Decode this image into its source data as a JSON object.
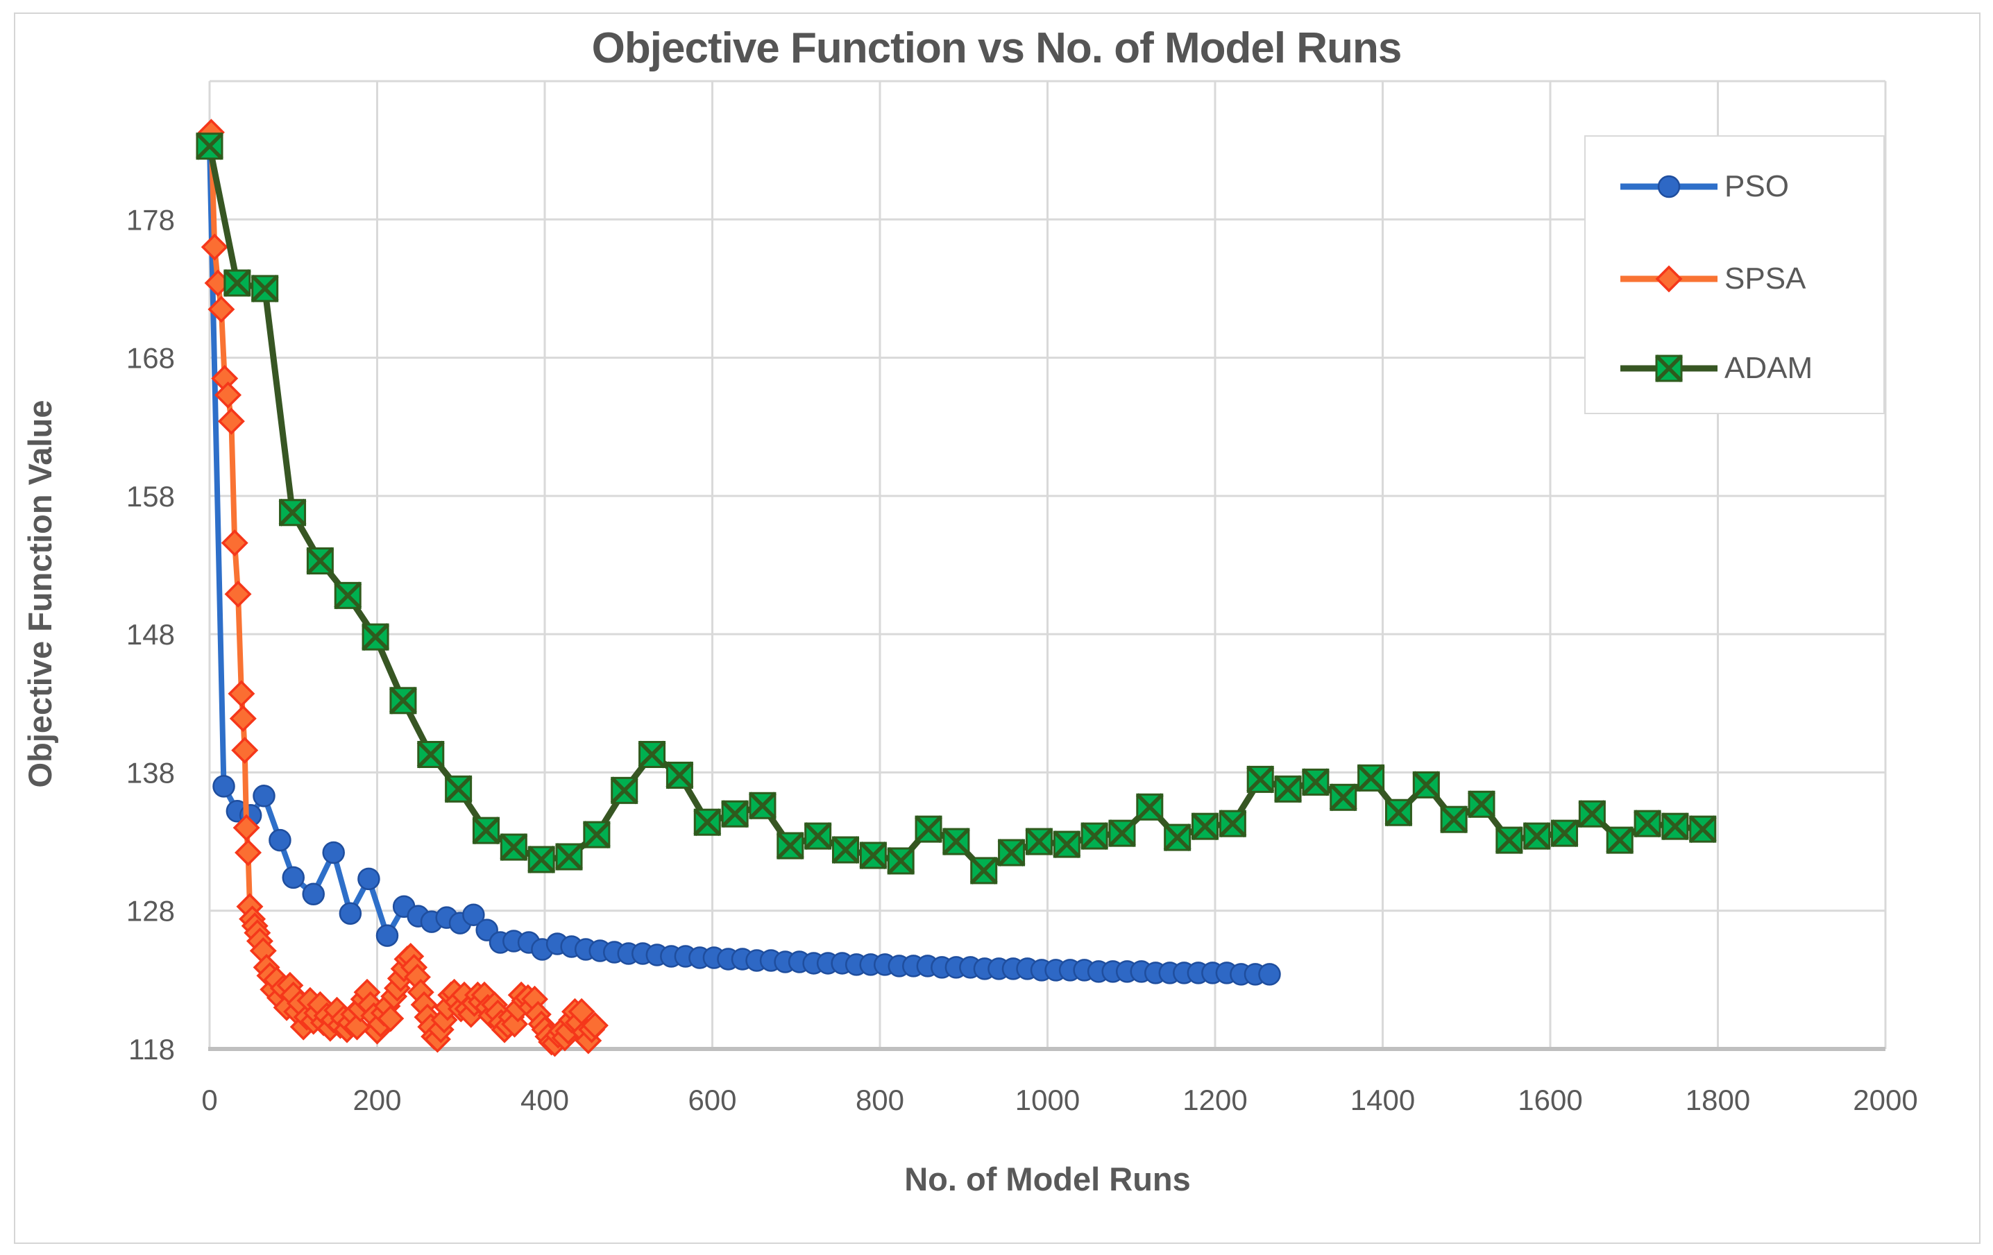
{
  "figure": {
    "title": "Objective Function vs No. of Model Runs",
    "x_axis_title": "No. of Model Runs",
    "y_axis_title": "Objective Function Value"
  },
  "legend": {
    "position": "top-right",
    "items": [
      {
        "label": "PSO",
        "marker": "circle"
      },
      {
        "label": "SPSA",
        "marker": "diamond"
      },
      {
        "label": "ADAM",
        "marker": "square-x"
      }
    ]
  },
  "colors": {
    "title_text": "#555555",
    "axis_text": "#595959",
    "gridline": "#d9d9d9",
    "axis_line": "#bfbfbf",
    "pso_line": "#2e6fc9",
    "pso_marker_fill": "#2e68c5",
    "pso_marker_stroke": "#1f4e9e",
    "spsa_line": "#f97333",
    "spsa_marker_fill": "#fb6e32",
    "spsa_marker_stroke": "#f5371a",
    "adam_line": "#375623",
    "adam_marker_fill": "#00b050",
    "adam_marker_stroke": "#2f5b1d"
  },
  "chart_data": {
    "type": "line",
    "title": "Objective Function vs No. of Model Runs",
    "xlabel": "No. of Model Runs",
    "ylabel": "Objective Function Value",
    "xlim": [
      0,
      2000
    ],
    "ylim": [
      118,
      188
    ],
    "x_ticks": [
      0,
      200,
      400,
      600,
      800,
      1000,
      1200,
      1400,
      1600,
      1800,
      2000
    ],
    "y_ticks": [
      118,
      128,
      138,
      148,
      158,
      168,
      178
    ],
    "grid": true,
    "legend_position": "top-right",
    "series": [
      {
        "name": "PSO",
        "marker": "circle",
        "line_color": "#2e6fc9",
        "marker_fill": "#2e68c5",
        "marker_stroke": "#1f4e9e",
        "points": [
          [
            0,
            183.3
          ],
          [
            17,
            137.0
          ],
          [
            33,
            135.2
          ],
          [
            49,
            134.9
          ],
          [
            65,
            136.3
          ],
          [
            84,
            133.1
          ],
          [
            100,
            130.4
          ],
          [
            124,
            129.2
          ],
          [
            148,
            132.2
          ],
          [
            168,
            127.8
          ],
          [
            190,
            130.3
          ],
          [
            212,
            126.2
          ],
          [
            232,
            128.3
          ],
          [
            249,
            127.6
          ],
          [
            265,
            127.2
          ],
          [
            283,
            127.5
          ],
          [
            299,
            127.1
          ],
          [
            315,
            127.7
          ],
          [
            331,
            126.6
          ],
          [
            347,
            125.7
          ],
          [
            363,
            125.8
          ],
          [
            381,
            125.7
          ],
          [
            397,
            125.2
          ],
          [
            415,
            125.6
          ],
          [
            432,
            125.4
          ],
          [
            449,
            125.2
          ],
          [
            466,
            125.1
          ],
          [
            483,
            125.0
          ],
          [
            500,
            124.9
          ],
          [
            517,
            124.9
          ],
          [
            534,
            124.8
          ],
          [
            551,
            124.7
          ],
          [
            568,
            124.7
          ],
          [
            585,
            124.6
          ],
          [
            602,
            124.6
          ],
          [
            619,
            124.5
          ],
          [
            636,
            124.5
          ],
          [
            653,
            124.4
          ],
          [
            670,
            124.4
          ],
          [
            687,
            124.3
          ],
          [
            704,
            124.3
          ],
          [
            721,
            124.2
          ],
          [
            738,
            124.2
          ],
          [
            755,
            124.2
          ],
          [
            772,
            124.1
          ],
          [
            789,
            124.1
          ],
          [
            806,
            124.1
          ],
          [
            823,
            124.0
          ],
          [
            840,
            124.0
          ],
          [
            857,
            124.0
          ],
          [
            874,
            123.9
          ],
          [
            891,
            123.9
          ],
          [
            908,
            123.9
          ],
          [
            925,
            123.8
          ],
          [
            942,
            123.8
          ],
          [
            959,
            123.8
          ],
          [
            976,
            123.8
          ],
          [
            993,
            123.7
          ],
          [
            1010,
            123.7
          ],
          [
            1027,
            123.7
          ],
          [
            1044,
            123.7
          ],
          [
            1061,
            123.6
          ],
          [
            1078,
            123.6
          ],
          [
            1095,
            123.6
          ],
          [
            1112,
            123.6
          ],
          [
            1129,
            123.5
          ],
          [
            1146,
            123.5
          ],
          [
            1163,
            123.5
          ],
          [
            1180,
            123.5
          ],
          [
            1197,
            123.5
          ],
          [
            1214,
            123.5
          ],
          [
            1231,
            123.4
          ],
          [
            1248,
            123.4
          ],
          [
            1265,
            123.4
          ]
        ]
      },
      {
        "name": "SPSA",
        "marker": "diamond",
        "line_color": "#f97333",
        "marker_fill": "#fb6e32",
        "marker_stroke": "#f5371a",
        "points": [
          [
            2,
            184.3
          ],
          [
            6,
            176.0
          ],
          [
            10,
            173.4
          ],
          [
            14,
            171.5
          ],
          [
            18,
            166.5
          ],
          [
            22,
            165.3
          ],
          [
            26,
            163.4
          ],
          [
            30,
            154.6
          ],
          [
            34,
            150.9
          ],
          [
            38,
            143.7
          ],
          [
            40,
            141.9
          ],
          [
            42,
            139.6
          ],
          [
            44,
            134.0
          ],
          [
            46,
            132.2
          ],
          [
            48,
            128.3
          ],
          [
            51,
            127.4
          ],
          [
            54,
            126.9
          ],
          [
            57,
            126.4
          ],
          [
            60,
            125.8
          ],
          [
            64,
            125.1
          ],
          [
            68,
            123.9
          ],
          [
            72,
            123.3
          ],
          [
            76,
            122.3
          ],
          [
            80,
            123.0
          ],
          [
            84,
            121.7
          ],
          [
            88,
            122.4
          ],
          [
            92,
            121.0
          ],
          [
            96,
            122.6
          ],
          [
            100,
            121.9
          ],
          [
            104,
            120.7
          ],
          [
            108,
            121.3
          ],
          [
            112,
            119.6
          ],
          [
            116,
            120.3
          ],
          [
            120,
            121.5
          ],
          [
            124,
            120.0
          ],
          [
            128,
            120.6
          ],
          [
            132,
            121.2
          ],
          [
            136,
            119.9
          ],
          [
            140,
            120.4
          ],
          [
            144,
            119.5
          ],
          [
            148,
            120.1
          ],
          [
            152,
            120.8
          ],
          [
            156,
            119.7
          ],
          [
            160,
            120.2
          ],
          [
            164,
            119.4
          ],
          [
            168,
            119.9
          ],
          [
            172,
            120.5
          ],
          [
            176,
            119.6
          ],
          [
            180,
            120.9
          ],
          [
            184,
            121.6
          ],
          [
            188,
            122.1
          ],
          [
            192,
            121.2
          ],
          [
            196,
            120.4
          ],
          [
            200,
            119.3
          ],
          [
            204,
            119.8
          ],
          [
            208,
            120.6
          ],
          [
            212,
            121.1
          ],
          [
            216,
            120.2
          ],
          [
            220,
            121.8
          ],
          [
            224,
            122.4
          ],
          [
            228,
            123.1
          ],
          [
            232,
            123.8
          ],
          [
            236,
            124.5
          ],
          [
            240,
            124.7
          ],
          [
            244,
            123.9
          ],
          [
            248,
            123.2
          ],
          [
            252,
            122.1
          ],
          [
            256,
            121.2
          ],
          [
            260,
            120.3
          ],
          [
            264,
            119.6
          ],
          [
            268,
            118.9
          ],
          [
            272,
            118.7
          ],
          [
            276,
            119.4
          ],
          [
            280,
            120.1
          ],
          [
            284,
            121.0
          ],
          [
            288,
            121.9
          ],
          [
            292,
            122.1
          ],
          [
            296,
            121.4
          ],
          [
            300,
            120.9
          ],
          [
            304,
            121.9
          ],
          [
            308,
            120.9
          ],
          [
            312,
            120.5
          ],
          [
            316,
            121.3
          ],
          [
            320,
            121.9
          ],
          [
            324,
            121.4
          ],
          [
            328,
            121.9
          ],
          [
            332,
            121.0
          ],
          [
            336,
            120.4
          ],
          [
            340,
            121.2
          ],
          [
            344,
            120.6
          ],
          [
            348,
            119.9
          ],
          [
            352,
            119.4
          ],
          [
            356,
            119.7
          ],
          [
            360,
            120.3
          ],
          [
            364,
            119.8
          ],
          [
            368,
            120.9
          ],
          [
            372,
            121.9
          ],
          [
            376,
            121.5
          ],
          [
            380,
            121.7
          ],
          [
            384,
            121.0
          ],
          [
            388,
            121.6
          ],
          [
            392,
            120.5
          ],
          [
            396,
            119.8
          ],
          [
            400,
            119.4
          ],
          [
            404,
            118.9
          ],
          [
            408,
            118.5
          ],
          [
            412,
            118.4
          ],
          [
            416,
            119.0
          ],
          [
            420,
            119.3
          ],
          [
            424,
            118.8
          ],
          [
            428,
            119.3
          ],
          [
            432,
            120.1
          ],
          [
            436,
            120.7
          ],
          [
            440,
            119.9
          ],
          [
            444,
            120.7
          ],
          [
            448,
            119.2
          ],
          [
            452,
            118.6
          ],
          [
            456,
            119.4
          ],
          [
            460,
            119.7
          ]
        ]
      },
      {
        "name": "ADAM",
        "marker": "square-x",
        "line_color": "#375623",
        "marker_fill": "#00b050",
        "marker_stroke": "#2f5b1d",
        "points": [
          [
            0,
            183.3
          ],
          [
            33,
            173.4
          ],
          [
            66,
            173.0
          ],
          [
            99,
            156.8
          ],
          [
            132,
            153.3
          ],
          [
            165,
            150.8
          ],
          [
            198,
            147.8
          ],
          [
            231,
            143.2
          ],
          [
            264,
            139.3
          ],
          [
            297,
            136.8
          ],
          [
            330,
            133.8
          ],
          [
            363,
            132.6
          ],
          [
            396,
            131.7
          ],
          [
            429,
            131.9
          ],
          [
            462,
            133.5
          ],
          [
            495,
            136.7
          ],
          [
            528,
            139.3
          ],
          [
            561,
            137.8
          ],
          [
            594,
            134.4
          ],
          [
            627,
            135.0
          ],
          [
            660,
            135.6
          ],
          [
            693,
            132.7
          ],
          [
            726,
            133.4
          ],
          [
            759,
            132.4
          ],
          [
            792,
            132.0
          ],
          [
            825,
            131.6
          ],
          [
            858,
            133.9
          ],
          [
            891,
            133.0
          ],
          [
            924,
            130.9
          ],
          [
            957,
            132.2
          ],
          [
            990,
            133.0
          ],
          [
            1023,
            132.8
          ],
          [
            1056,
            133.4
          ],
          [
            1089,
            133.6
          ],
          [
            1122,
            135.5
          ],
          [
            1155,
            133.3
          ],
          [
            1188,
            134.1
          ],
          [
            1221,
            134.3
          ],
          [
            1254,
            137.5
          ],
          [
            1287,
            136.8
          ],
          [
            1320,
            137.3
          ],
          [
            1353,
            136.2
          ],
          [
            1386,
            137.6
          ],
          [
            1419,
            135.1
          ],
          [
            1452,
            137.1
          ],
          [
            1485,
            134.6
          ],
          [
            1518,
            135.7
          ],
          [
            1551,
            133.1
          ],
          [
            1584,
            133.4
          ],
          [
            1617,
            133.6
          ],
          [
            1650,
            135.0
          ],
          [
            1683,
            133.1
          ],
          [
            1716,
            134.3
          ],
          [
            1749,
            134.1
          ],
          [
            1782,
            133.9
          ]
        ]
      }
    ]
  }
}
